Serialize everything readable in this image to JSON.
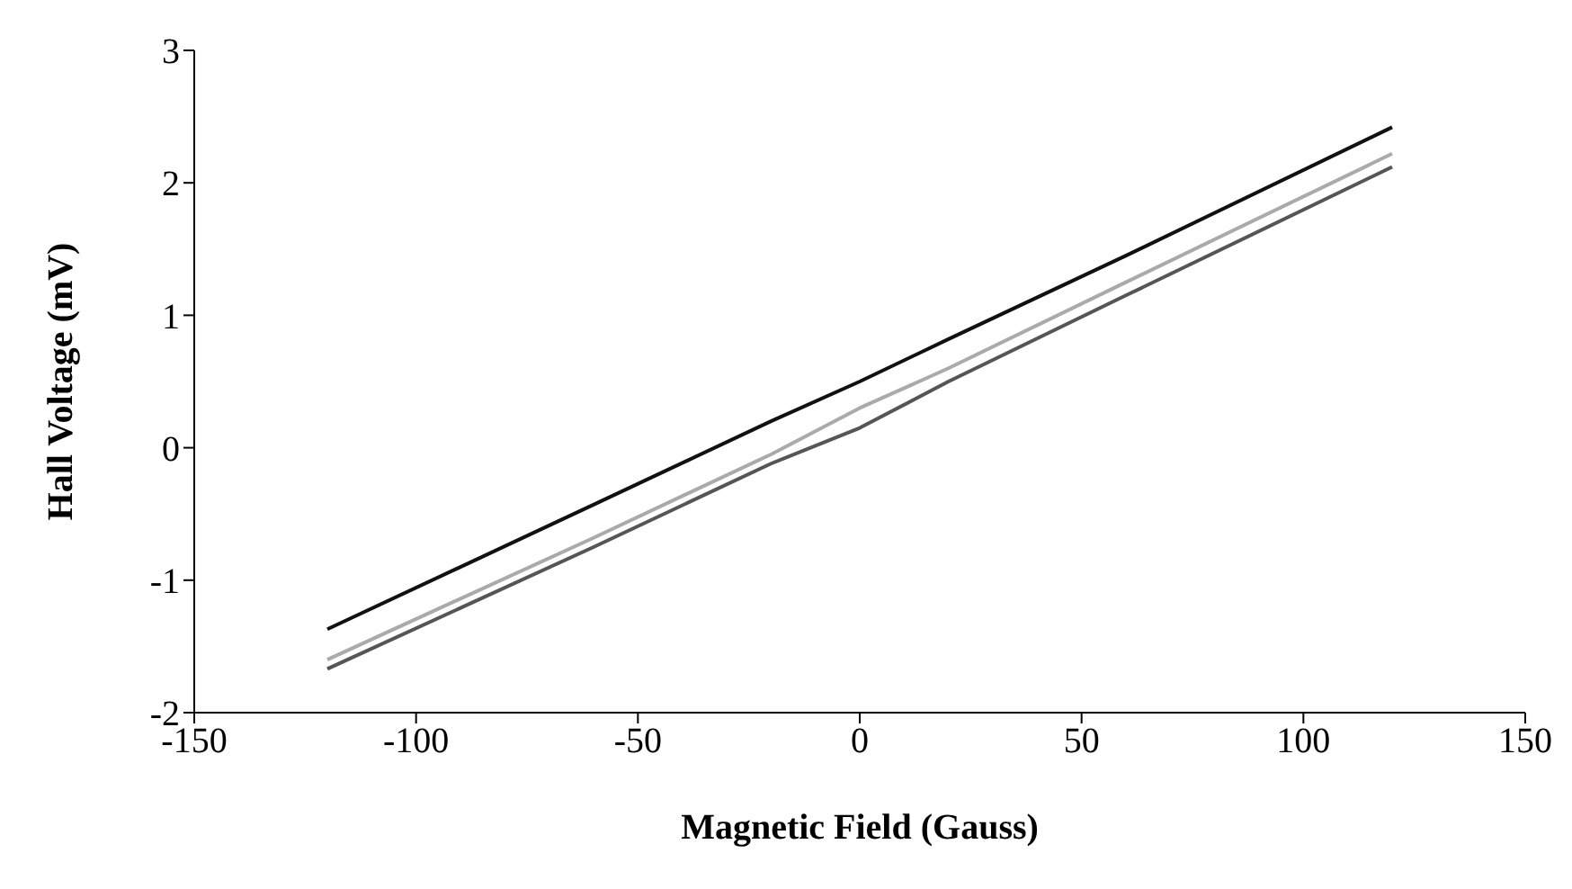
{
  "chart_data": {
    "type": "line",
    "xlabel": "Magnetic Field (Gauss)",
    "ylabel": "Hall Voltage (mV)",
    "x": [
      -120,
      -60,
      -20,
      0,
      20,
      60,
      120
    ],
    "series": [
      {
        "color": "#111111",
        "values": [
          -1.37,
          -0.43,
          0.2,
          0.5,
          0.82,
          1.45,
          2.42
        ]
      },
      {
        "color": "#aaaaaa",
        "values": [
          -1.6,
          -0.68,
          -0.05,
          0.3,
          0.6,
          1.25,
          2.22
        ]
      },
      {
        "color": "#555555",
        "values": [
          -1.67,
          -0.75,
          -0.12,
          0.15,
          0.5,
          1.15,
          2.12
        ]
      }
    ],
    "xlim": [
      -150,
      150
    ],
    "xticks": [
      -150,
      -100,
      -50,
      0,
      50,
      100,
      150
    ],
    "ylim": [
      -2,
      3
    ],
    "yticks": [
      -2,
      -1,
      0,
      1,
      2,
      3
    ],
    "grid": false,
    "legend": false,
    "marker": "none",
    "line_style": "solid"
  }
}
